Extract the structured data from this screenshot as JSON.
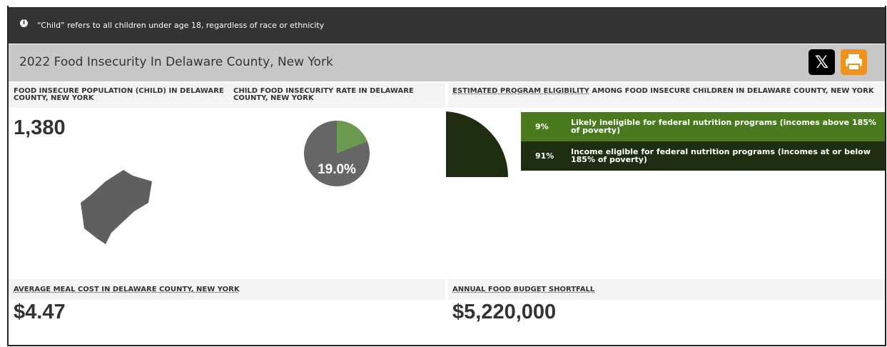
{
  "notice": "“Child” refers to all children under age 18, regardless of race or ethnicity",
  "title": "2022 Food Insecurity In Delaware County, New York",
  "panels": [
    {
      "label": "FOOD INSECURE POPULATION (CHILD) IN DELAWARE COUNTY, NEW YORK",
      "value": "1,380"
    },
    {
      "label": "CHILD FOOD INSECURITY RATE IN DELAWARE COUNTY, NEW YORK",
      "value": 19.0,
      "value_label": "19.0%"
    },
    {
      "label_link": "ESTIMATED PROGRAM ELIGIBILITY",
      "label": "AMONG FOOD INSECURE CHILDREN IN DELAWARE COUNTY, NEW YORK",
      "segments": [
        {
          "value": 9,
          "value_label": "9%",
          "name": "Likely ineligible for federal nutrition programs (incomes above 185% of poverty)",
          "color": "#4a7a1e"
        },
        {
          "value": 91,
          "value_label": "91%",
          "name": "Income eligible for federal nutrition programs (incomes at or below 185% of poverty)",
          "color": "#1f2e10"
        }
      ]
    },
    {
      "label": "AVERAGE MEAL COST IN DELAWARE COUNTY, NEW YORK",
      "value": "$4.47"
    },
    {
      "label": "ANNUAL FOOD BUDGET SHORTFALL",
      "value": "$5,220,000"
    }
  ]
}
